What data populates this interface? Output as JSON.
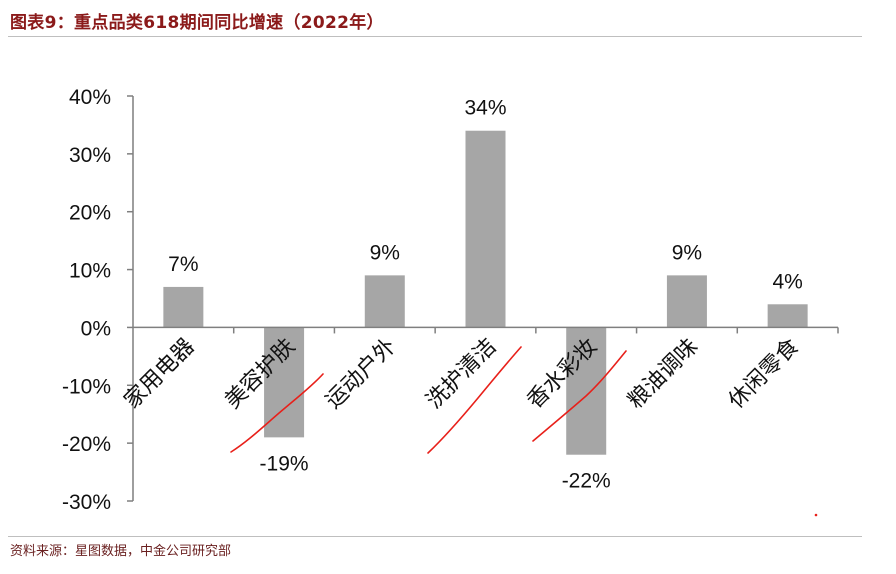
{
  "figure": {
    "title": "图表9：重点品类618期间同比增速（2022年）",
    "source": "资料来源：星图数据，中金公司研究部"
  },
  "colors": {
    "bar": "#a6a6a6",
    "axis": "#7f7f7f",
    "title": "#8b1a1a",
    "annotation": "#e8201a"
  },
  "chart_data": {
    "type": "bar",
    "categories": [
      "家用电器",
      "美容护肤",
      "运动户外",
      "洗护清洁",
      "香水彩妆",
      "粮油调味",
      "休闲零食"
    ],
    "values": [
      7,
      -19,
      9,
      34,
      -22,
      9,
      4
    ],
    "data_labels": [
      "7%",
      "-19%",
      "9%",
      "34%",
      "-22%",
      "9%",
      "4%"
    ],
    "ylim": [
      -30,
      40
    ],
    "yticks": [
      40,
      30,
      20,
      10,
      0,
      -10,
      -20,
      -30
    ],
    "ytick_labels": [
      "40%",
      "30%",
      "20%",
      "10%",
      "0%",
      "-10%",
      "-20%",
      "-30%"
    ],
    "title": "",
    "xlabel": "",
    "ylabel": "",
    "grid": false,
    "legend": "none",
    "annotations": "hand-drawn red underline strokes on 美容护肤, 洗护清洁, 香水彩妆"
  }
}
